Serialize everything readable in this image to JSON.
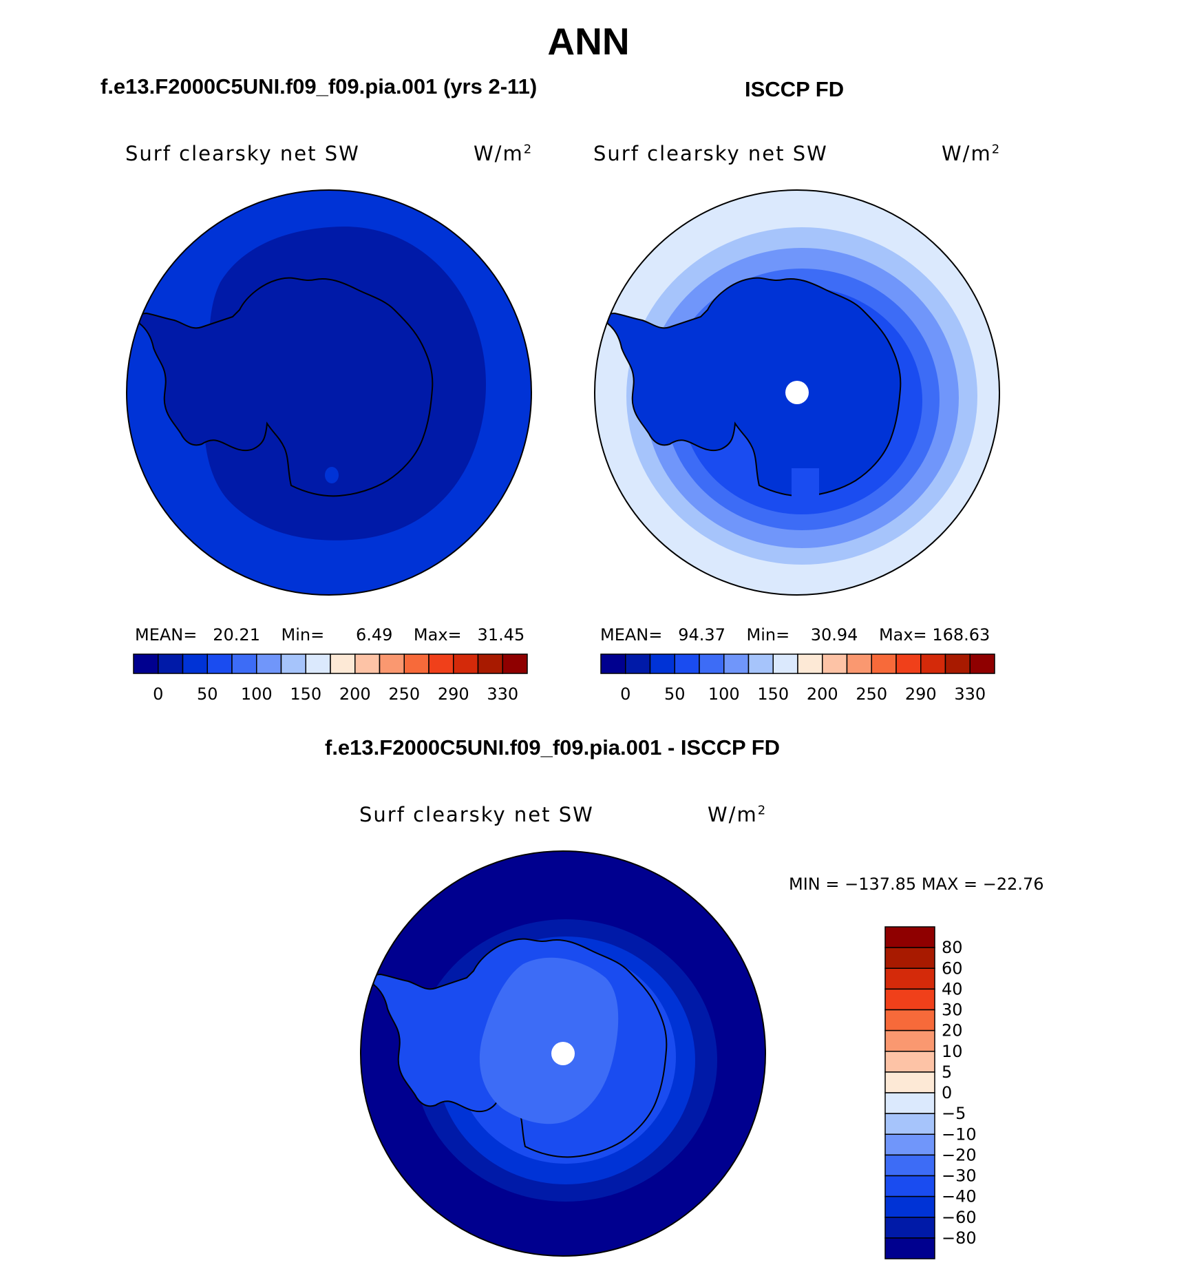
{
  "figure": {
    "season": "ANN",
    "diff_title": "f.e13.F2000C5UNI.f09_f09.pia.001 - ISCCP FD"
  },
  "chart_data": [
    {
      "type": "heatmap",
      "projection": "south-polar-stereographic",
      "case_title": "f.e13.F2000C5UNI.f09_f09.pia.001 (yrs 2-11)",
      "variable": "Surf clearsky net SW",
      "units": "W/m",
      "units_exp": "2",
      "stats": {
        "mean_label": "MEAN=",
        "mean": "20.21",
        "min_label": "Min=",
        "min": "6.49",
        "max_label": "Max=",
        "max": "31.45"
      },
      "colorbar": {
        "orientation": "horizontal",
        "colors": [
          "#00008f",
          "#001aa8",
          "#0033d6",
          "#1a4cf0",
          "#3d6cf6",
          "#7096fa",
          "#a6c4fb",
          "#dbe9fd",
          "#fde9d6",
          "#fdc3a6",
          "#fa9870",
          "#f76a3a",
          "#f0401a",
          "#d42a0a",
          "#a81a00",
          "#8f0000"
        ],
        "ticks": [
          "0",
          "50",
          "100",
          "150",
          "200",
          "250",
          "290",
          "330"
        ]
      },
      "regions": [
        "Antarctic continent ~10-20 W/m2 (dark blue)",
        "Southern Ocean ~20-40 W/m2"
      ]
    },
    {
      "type": "heatmap",
      "projection": "south-polar-stereographic",
      "case_title": "ISCCP FD",
      "variable": "Surf clearsky net SW",
      "units": "W/m",
      "units_exp": "2",
      "stats": {
        "mean_label": "MEAN=",
        "mean": "94.37",
        "min_label": "Min=",
        "min": "30.94",
        "max_label": "Max=",
        "max": "168.63"
      },
      "colorbar": {
        "orientation": "horizontal",
        "colors": [
          "#00008f",
          "#001aa8",
          "#0033d6",
          "#1a4cf0",
          "#3d6cf6",
          "#7096fa",
          "#a6c4fb",
          "#dbe9fd",
          "#fde9d6",
          "#fdc3a6",
          "#fa9870",
          "#f76a3a",
          "#f0401a",
          "#d42a0a",
          "#a81a00",
          "#8f0000"
        ],
        "ticks": [
          "0",
          "50",
          "100",
          "150",
          "200",
          "250",
          "290",
          "330"
        ]
      },
      "regions": [
        "Antarctic continent ~30-50 W/m2",
        "rings increasing outward to ~150-200 W/m2"
      ]
    },
    {
      "type": "heatmap",
      "projection": "south-polar-stereographic",
      "case_title": "f.e13.F2000C5UNI.f09_f09.pia.001 - ISCCP FD",
      "variable": "Surf clearsky net SW",
      "units": "W/m",
      "units_exp": "2",
      "stats_text": "MIN = −137.85 MAX = −22.76",
      "colorbar": {
        "orientation": "vertical",
        "colors_top_to_bottom": [
          "#8f0000",
          "#a81a00",
          "#d42a0a",
          "#f0401a",
          "#f76a3a",
          "#fa9870",
          "#fdc3a6",
          "#fde9d6",
          "#dbe9fd",
          "#a6c4fb",
          "#7096fa",
          "#3d6cf6",
          "#1a4cf0",
          "#0033d6",
          "#001aa8",
          "#00008f"
        ],
        "ticks_top_to_bottom": [
          "80",
          "60",
          "40",
          "30",
          "20",
          "10",
          "5",
          "0",
          "−5",
          "−10",
          "−20",
          "−30",
          "−40",
          "−60",
          "−80"
        ]
      },
      "regions": [
        "Ocean difference below −80 W/m2",
        "Continent interior about −20 to −40 W/m2"
      ]
    }
  ]
}
